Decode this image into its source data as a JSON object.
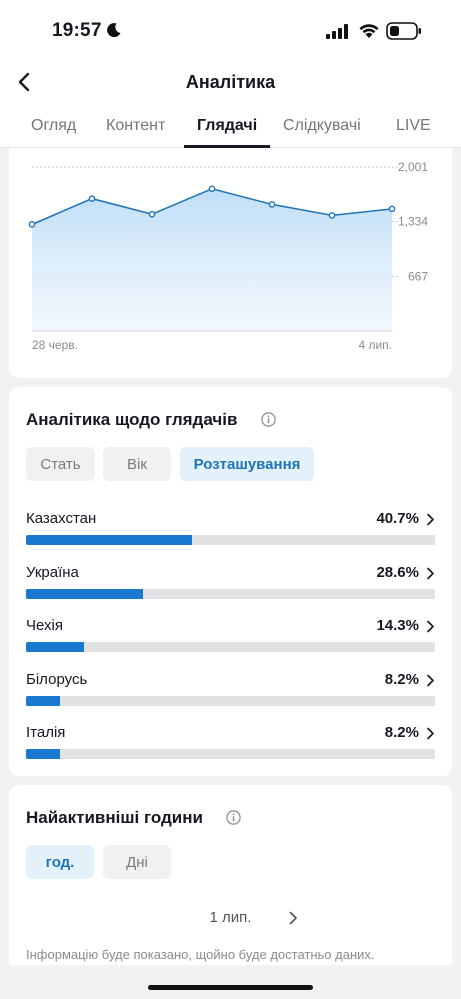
{
  "status_bar": {
    "time": "19:57"
  },
  "header": {
    "title": "Аналітика"
  },
  "tabs": [
    {
      "label": "Огляд",
      "active": false
    },
    {
      "label": "Контент",
      "active": false
    },
    {
      "label": "Глядачі",
      "active": true
    },
    {
      "label": "Слідкувачі",
      "active": false
    },
    {
      "label": "LIVE",
      "active": false
    }
  ],
  "chart_data": {
    "type": "area",
    "x": [
      "28 черв.",
      "29 черв.",
      "30 черв.",
      "1 лип.",
      "2 лип.",
      "3 лип.",
      "4 лип."
    ],
    "values": [
      1300,
      1615,
      1425,
      1735,
      1545,
      1410,
      1490
    ],
    "x_tick_labels": [
      "28 черв.",
      "4 лип."
    ],
    "y_tick_labels": [
      "2,001",
      "1,334",
      "667"
    ],
    "y_ticks": [
      2001,
      1334,
      667
    ],
    "ylim": [
      0,
      2001
    ],
    "grid": true,
    "color": "#1f73b7"
  },
  "viewers": {
    "title": "Аналітика щодо глядачів",
    "chips": [
      {
        "label": "Стать",
        "active": false
      },
      {
        "label": "Вік",
        "active": false
      },
      {
        "label": "Розташування",
        "active": true
      }
    ],
    "locations": [
      {
        "name": "Казахстан",
        "pct": "40.7%",
        "value": 40.7
      },
      {
        "name": "Україна",
        "pct": "28.6%",
        "value": 28.6
      },
      {
        "name": "Чехія",
        "pct": "14.3%",
        "value": 14.3
      },
      {
        "name": "Білорусь",
        "pct": "8.2%",
        "value": 8.2
      },
      {
        "name": "Італія",
        "pct": "8.2%",
        "value": 8.2
      }
    ]
  },
  "hours": {
    "title": "Найактивніші години",
    "chips": [
      {
        "label": "год.",
        "active": true
      },
      {
        "label": "Дні",
        "active": false
      }
    ],
    "date": "1 лип.",
    "hint": "Інформацію буде показано, щойно буде достатньо даних."
  },
  "colors": {
    "accent": "#1f73b7",
    "bar": "#1a79cf",
    "track": "#e2e2e4"
  }
}
